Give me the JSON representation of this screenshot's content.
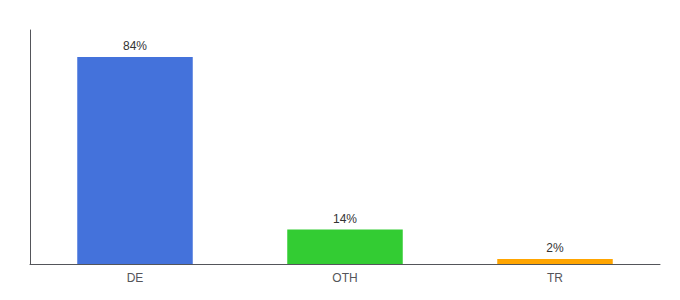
{
  "chart_data": {
    "type": "bar",
    "categories": [
      "DE",
      "OTH",
      "TR"
    ],
    "values": [
      84,
      14,
      2
    ],
    "value_labels": [
      "84%",
      "14%",
      "2%"
    ],
    "colors": [
      "#4472db",
      "#33cc33",
      "#ffa500"
    ],
    "ylim": [
      0,
      95
    ],
    "data_labels": true,
    "tick_labels": "x",
    "grid": false
  }
}
